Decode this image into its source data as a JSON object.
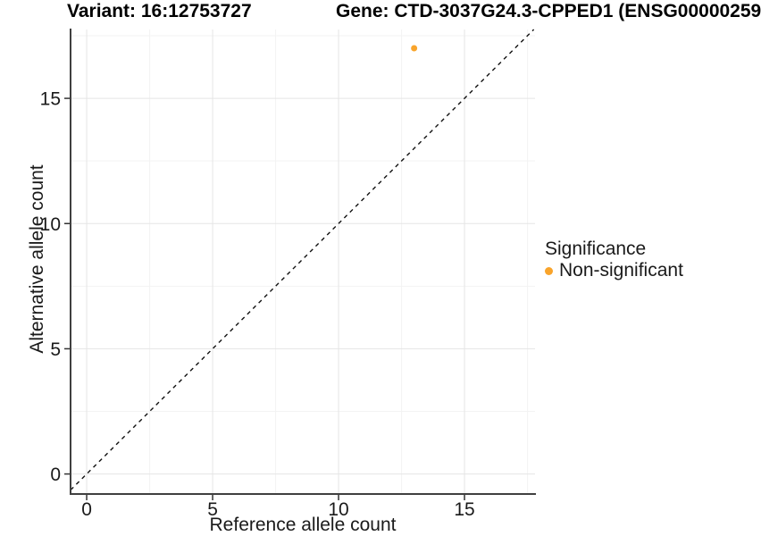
{
  "chart_data": {
    "type": "scatter",
    "title_left": "Variant: 16:12753727",
    "title_right": "Gene: CTD-3037G24.3-CPPED1 (ENSG00000259",
    "xlabel": "Reference allele count",
    "ylabel": "Alternative allele count",
    "xlim": [
      -0.64,
      17.8
    ],
    "ylim": [
      -0.8,
      17.75
    ],
    "xticks": [
      0,
      5,
      10,
      15
    ],
    "yticks": [
      0,
      5,
      10,
      15
    ],
    "xminor": [
      2.5,
      7.5,
      12.5,
      17.5
    ],
    "yminor": [
      2.5,
      7.5,
      12.5,
      17.5
    ],
    "grid": true,
    "points": [
      {
        "x": 13,
        "y": 17,
        "significance": "Non-significant"
      }
    ],
    "reference_line": {
      "style": "dashed",
      "slope": 1,
      "intercept": 0
    },
    "legend": {
      "title": "Significance",
      "position": "right",
      "entries": [
        {
          "label": "Non-significant",
          "color": "#F9A42B"
        }
      ]
    }
  },
  "colors": {
    "point_orange": "#F9A42B",
    "axis_line": "#404040",
    "tick_mark": "#333333",
    "grid_major": "#e5e5e5",
    "grid_minor": "#f3f3f3",
    "dashed_line": "#111111",
    "text": "#1a1a1a"
  }
}
